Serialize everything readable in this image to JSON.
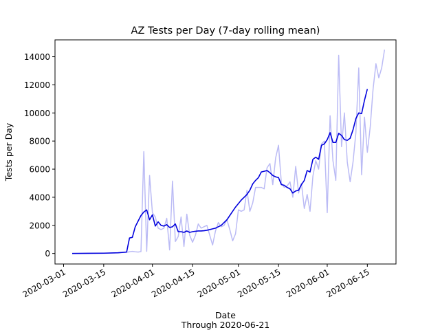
{
  "chart_data": {
    "type": "line",
    "title": "AZ Tests per Day (7-day rolling mean)",
    "xlabel": "Date",
    "xlabel_sub": "Through 2020-06-21",
    "ylabel": "Tests per Day",
    "xlim": [
      "2020-02-27",
      "2020-06-25"
    ],
    "ylim": [
      -750,
      15200
    ],
    "x_ticks": [
      "2020-03-01",
      "2020-03-15",
      "2020-04-01",
      "2020-04-15",
      "2020-05-01",
      "2020-05-15",
      "2020-06-01",
      "2020-06-15"
    ],
    "y_ticks": [
      0,
      2000,
      4000,
      6000,
      8000,
      10000,
      12000,
      14000
    ],
    "grid": false,
    "series": [
      {
        "color": "#bbbbf5",
        "points": [
          [
            "2020-03-04",
            0
          ],
          [
            "2020-03-10",
            0
          ],
          [
            "2020-03-15",
            10
          ],
          [
            "2020-03-20",
            50
          ],
          [
            "2020-03-23",
            80
          ],
          [
            "2020-03-24",
            120
          ],
          [
            "2020-03-25",
            150
          ],
          [
            "2020-03-26",
            120
          ],
          [
            "2020-03-27",
            100
          ],
          [
            "2020-03-28",
            130
          ],
          [
            "2020-03-29",
            7250
          ],
          [
            "2020-03-30",
            150
          ],
          [
            "2020-03-31",
            5550
          ],
          [
            "2020-04-01",
            2900
          ],
          [
            "2020-04-02",
            2600
          ],
          [
            "2020-04-03",
            1800
          ],
          [
            "2020-04-04",
            1700
          ],
          [
            "2020-04-05",
            1800
          ],
          [
            "2020-04-06",
            2500
          ],
          [
            "2020-04-07",
            250
          ],
          [
            "2020-04-08",
            5150
          ],
          [
            "2020-04-09",
            850
          ],
          [
            "2020-04-10",
            1200
          ],
          [
            "2020-04-11",
            2600
          ],
          [
            "2020-04-12",
            500
          ],
          [
            "2020-04-13",
            2800
          ],
          [
            "2020-04-14",
            1300
          ],
          [
            "2020-04-15",
            800
          ],
          [
            "2020-04-16",
            1300
          ],
          [
            "2020-04-17",
            2100
          ],
          [
            "2020-04-18",
            1800
          ],
          [
            "2020-04-19",
            1900
          ],
          [
            "2020-04-20",
            2000
          ],
          [
            "2020-04-21",
            1300
          ],
          [
            "2020-04-22",
            600
          ],
          [
            "2020-04-23",
            1600
          ],
          [
            "2020-04-24",
            2200
          ],
          [
            "2020-04-25",
            1900
          ],
          [
            "2020-04-26",
            2000
          ],
          [
            "2020-04-27",
            2400
          ],
          [
            "2020-04-28",
            1700
          ],
          [
            "2020-04-29",
            900
          ],
          [
            "2020-04-30",
            1400
          ],
          [
            "2020-05-01",
            3100
          ],
          [
            "2020-05-02",
            3000
          ],
          [
            "2020-05-03",
            3100
          ],
          [
            "2020-05-04",
            4500
          ],
          [
            "2020-05-05",
            3000
          ],
          [
            "2020-05-06",
            3600
          ],
          [
            "2020-05-07",
            4700
          ],
          [
            "2020-05-08",
            4700
          ],
          [
            "2020-05-09",
            4700
          ],
          [
            "2020-05-10",
            4600
          ],
          [
            "2020-05-11",
            6100
          ],
          [
            "2020-05-12",
            6400
          ],
          [
            "2020-05-13",
            4900
          ],
          [
            "2020-05-14",
            6800
          ],
          [
            "2020-05-15",
            7700
          ],
          [
            "2020-05-16",
            5000
          ],
          [
            "2020-05-17",
            4700
          ],
          [
            "2020-05-18",
            4800
          ],
          [
            "2020-05-19",
            5100
          ],
          [
            "2020-05-20",
            4000
          ],
          [
            "2020-05-21",
            6200
          ],
          [
            "2020-05-22",
            4300
          ],
          [
            "2020-05-23",
            5000
          ],
          [
            "2020-05-24",
            3200
          ],
          [
            "2020-05-25",
            4200
          ],
          [
            "2020-05-26",
            3000
          ],
          [
            "2020-05-27",
            5500
          ],
          [
            "2020-05-28",
            6600
          ],
          [
            "2020-05-29",
            6000
          ],
          [
            "2020-05-30",
            7800
          ],
          [
            "2020-05-31",
            8000
          ],
          [
            "2020-06-01",
            2900
          ],
          [
            "2020-06-02",
            9800
          ],
          [
            "2020-06-03",
            6600
          ],
          [
            "2020-06-04",
            5200
          ],
          [
            "2020-06-05",
            14100
          ],
          [
            "2020-06-06",
            7600
          ],
          [
            "2020-06-07",
            10000
          ],
          [
            "2020-06-08",
            6500
          ],
          [
            "2020-06-09",
            5100
          ],
          [
            "2020-06-10",
            6500
          ],
          [
            "2020-06-11",
            8600
          ],
          [
            "2020-06-12",
            13200
          ],
          [
            "2020-06-13",
            5600
          ],
          [
            "2020-06-14",
            9700
          ],
          [
            "2020-06-15",
            7200
          ],
          [
            "2020-06-16",
            9000
          ],
          [
            "2020-06-17",
            11700
          ],
          [
            "2020-06-18",
            13500
          ],
          [
            "2020-06-19",
            12500
          ],
          [
            "2020-06-20",
            13200
          ],
          [
            "2020-06-21",
            14500
          ]
        ]
      },
      {
        "color": "#0000dd",
        "points": [
          [
            "2020-03-04",
            0
          ],
          [
            "2020-03-15",
            20
          ],
          [
            "2020-03-20",
            50
          ],
          [
            "2020-03-23",
            100
          ],
          [
            "2020-03-24",
            1100
          ],
          [
            "2020-03-25",
            1150
          ],
          [
            "2020-03-26",
            1900
          ],
          [
            "2020-03-27",
            2300
          ],
          [
            "2020-03-28",
            2700
          ],
          [
            "2020-03-29",
            2950
          ],
          [
            "2020-03-30",
            3100
          ],
          [
            "2020-03-31",
            2400
          ],
          [
            "2020-04-01",
            2750
          ],
          [
            "2020-04-02",
            1950
          ],
          [
            "2020-04-03",
            2250
          ],
          [
            "2020-04-04",
            2000
          ],
          [
            "2020-04-05",
            1950
          ],
          [
            "2020-04-06",
            2050
          ],
          [
            "2020-04-07",
            1850
          ],
          [
            "2020-04-08",
            1900
          ],
          [
            "2020-04-09",
            2100
          ],
          [
            "2020-04-10",
            1550
          ],
          [
            "2020-04-11",
            1550
          ],
          [
            "2020-04-12",
            1500
          ],
          [
            "2020-04-13",
            1600
          ],
          [
            "2020-04-14",
            1500
          ],
          [
            "2020-04-15",
            1550
          ],
          [
            "2020-04-16",
            1580
          ],
          [
            "2020-04-17",
            1600
          ],
          [
            "2020-04-18",
            1600
          ],
          [
            "2020-04-19",
            1620
          ],
          [
            "2020-04-20",
            1650
          ],
          [
            "2020-04-21",
            1700
          ],
          [
            "2020-04-22",
            1750
          ],
          [
            "2020-04-23",
            1800
          ],
          [
            "2020-04-24",
            1900
          ],
          [
            "2020-04-25",
            2000
          ],
          [
            "2020-04-26",
            2200
          ],
          [
            "2020-04-27",
            2400
          ],
          [
            "2020-04-28",
            2700
          ],
          [
            "2020-04-29",
            3000
          ],
          [
            "2020-04-30",
            3300
          ],
          [
            "2020-05-01",
            3550
          ],
          [
            "2020-05-02",
            3800
          ],
          [
            "2020-05-03",
            4000
          ],
          [
            "2020-05-04",
            4200
          ],
          [
            "2020-05-05",
            4500
          ],
          [
            "2020-05-06",
            4950
          ],
          [
            "2020-05-07",
            5200
          ],
          [
            "2020-05-08",
            5400
          ],
          [
            "2020-05-09",
            5800
          ],
          [
            "2020-05-10",
            5850
          ],
          [
            "2020-05-11",
            5900
          ],
          [
            "2020-05-12",
            5750
          ],
          [
            "2020-05-13",
            5550
          ],
          [
            "2020-05-14",
            5450
          ],
          [
            "2020-05-15",
            5400
          ],
          [
            "2020-05-16",
            4900
          ],
          [
            "2020-05-17",
            4850
          ],
          [
            "2020-05-18",
            4700
          ],
          [
            "2020-05-19",
            4600
          ],
          [
            "2020-05-20",
            4300
          ],
          [
            "2020-05-21",
            4450
          ],
          [
            "2020-05-22",
            4500
          ],
          [
            "2020-05-23",
            4900
          ],
          [
            "2020-05-24",
            5200
          ],
          [
            "2020-05-25",
            5900
          ],
          [
            "2020-05-26",
            5800
          ],
          [
            "2020-05-27",
            6700
          ],
          [
            "2020-05-28",
            6850
          ],
          [
            "2020-05-29",
            6700
          ],
          [
            "2020-05-30",
            7700
          ],
          [
            "2020-05-31",
            7800
          ],
          [
            "2020-06-01",
            8100
          ],
          [
            "2020-06-02",
            8600
          ],
          [
            "2020-06-03",
            7900
          ],
          [
            "2020-06-04",
            7900
          ],
          [
            "2020-06-05",
            8550
          ],
          [
            "2020-06-06",
            8400
          ],
          [
            "2020-06-07",
            8100
          ],
          [
            "2020-06-08",
            8050
          ],
          [
            "2020-06-09",
            8200
          ],
          [
            "2020-06-10",
            8800
          ],
          [
            "2020-06-11",
            9600
          ],
          [
            "2020-06-12",
            10000
          ],
          [
            "2020-06-13",
            9950
          ],
          [
            "2020-06-14",
            10900
          ],
          [
            "2020-06-15",
            11700
          ]
        ]
      }
    ]
  }
}
